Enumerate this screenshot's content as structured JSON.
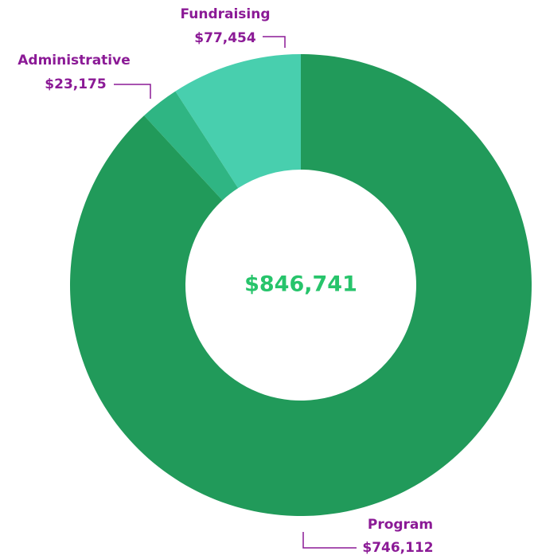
{
  "chart_data": {
    "type": "donut",
    "center_label": "$846,741",
    "categories": [
      "Program",
      "Administrative",
      "Fundraising"
    ],
    "values": [
      746112,
      23175,
      77454
    ],
    "value_labels": [
      "$746,112",
      "$23,175",
      "$77,454"
    ],
    "colors": [
      "#219a5a",
      "#2fb583",
      "#48cfae"
    ]
  }
}
